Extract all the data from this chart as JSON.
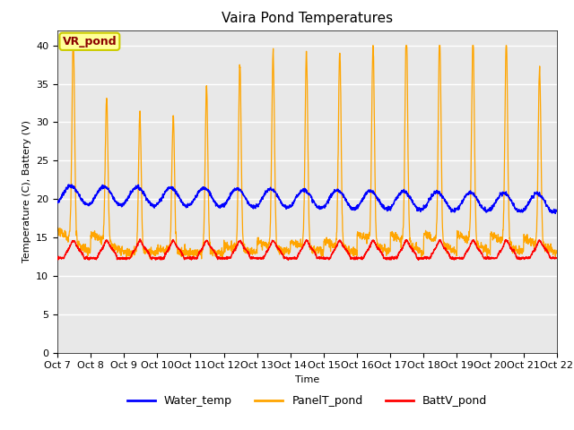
{
  "title": "Vaira Pond Temperatures",
  "xlabel": "Time",
  "ylabel": "Temperature (C), Battery (V)",
  "ylim": [
    0,
    42
  ],
  "yticks": [
    0,
    5,
    10,
    15,
    20,
    25,
    30,
    35,
    40
  ],
  "x_labels": [
    "Oct 7",
    "Oct 8",
    "Oct 9",
    "Oct 10",
    "Oct 11",
    "Oct 12",
    "Oct 13",
    "Oct 14",
    "Oct 15",
    "Oct 16",
    "Oct 17",
    "Oct 18",
    "Oct 19",
    "Oct 20",
    "Oct 21",
    "Oct 22"
  ],
  "legend_labels": [
    "Water_temp",
    "PanelT_pond",
    "BattV_pond"
  ],
  "water_color": "#0000ff",
  "panel_color": "#ffa500",
  "batt_color": "#ff0000",
  "bg_color": "#e8e8e8",
  "annotation_text": "VR_pond",
  "annotation_color": "#8b0000",
  "annotation_bg": "#ffff99",
  "annotation_border": "#cccc00",
  "title_fontsize": 11,
  "axis_label_fontsize": 8,
  "tick_fontsize": 8,
  "legend_fontsize": 9
}
